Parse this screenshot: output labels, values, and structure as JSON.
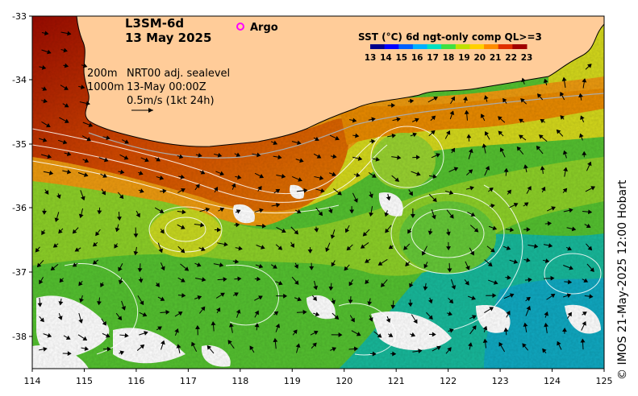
{
  "map": {
    "product": "L3SM-6d",
    "date": "13 May 2025",
    "argo_label": "Argo",
    "argo_color": "#ff00ff",
    "isobath_1": "200m",
    "isobath_2": "1000m",
    "altimetry": "NRT00 adj. sealevel",
    "altimetry_time": "13-May 00:00Z",
    "scale_label": "0.5m/s (1kt 24h)",
    "colorbar_title": "SST (°C) 6d ngt-only comp QL>=3",
    "colorbar_ticks": [
      "13",
      "14",
      "15",
      "16",
      "17",
      "18",
      "19",
      "20",
      "21",
      "22",
      "23"
    ],
    "colorbar_colors": [
      "#00008b",
      "#0000ff",
      "#0060ff",
      "#00b0ff",
      "#00e0c0",
      "#40e040",
      "#c0e000",
      "#ffd000",
      "#ff8c00",
      "#e03000",
      "#a00000"
    ],
    "x_ticks": [
      "114",
      "115",
      "116",
      "117",
      "118",
      "119",
      "120",
      "121",
      "122",
      "123",
      "124",
      "125"
    ],
    "y_ticks": [
      "-33",
      "-34",
      "-35",
      "-36",
      "-37",
      "-38"
    ],
    "land_color": "#ffcc99",
    "credit": "© IMOS 21-May-2025 12:00 Hobart"
  }
}
